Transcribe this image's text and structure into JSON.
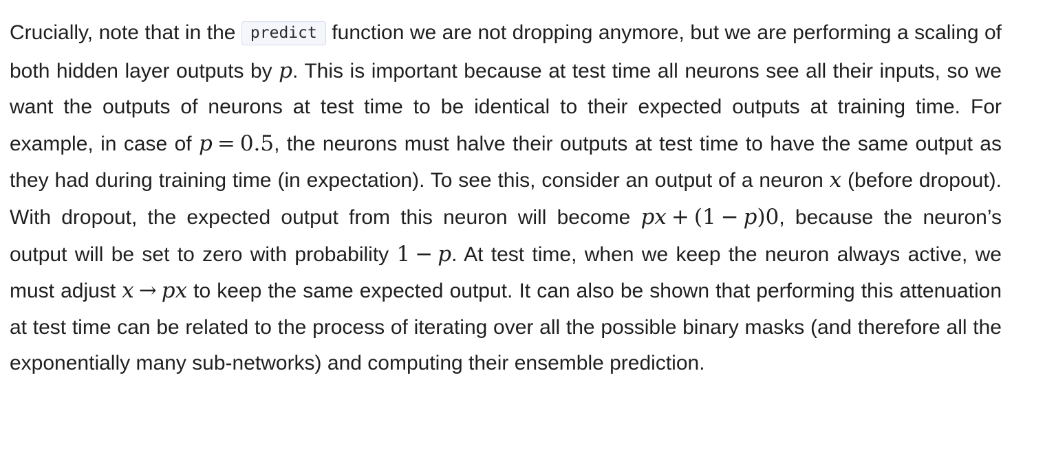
{
  "paragraph": {
    "t01": "Crucially, note that in the ",
    "code_predict": "predict",
    "t02": " function we are not dropping anymore, but we are performing a scaling of both hidden layer outputs by ",
    "m_p1": "p",
    "t03": ". This is important because at test time all neurons see all their inputs, so we want the outputs of neurons at test time to be identical to their expected outputs at training time. For example, in case of ",
    "m_p2": "p",
    "m_eq": "=",
    "m_half": "0.5",
    "t04": ", the neurons must halve their outputs at test time to have the same output as they had during training time (in expectation). To see this, consider an output of a neuron ",
    "m_x1": "x",
    "t05": " (before dropout). With dropout, the expected output from this neuron will become ",
    "m_px1": "px",
    "m_plus": "+",
    "m_lp": "(1",
    "m_minus1": "−",
    "m_p3": "p",
    "m_rp0": ")0",
    "t06": ", because the neuron’s output will be set to zero with probability ",
    "m_one": "1",
    "m_minus2": "−",
    "m_p4": "p",
    "t07": ". At test time, when we keep the neuron always active, we must adjust ",
    "m_x2": "x",
    "m_arrow": "→",
    "m_px2": "px",
    "t08": " to keep the same expected output. It can also be shown that performing this attenuation at test time can be related to the process of iterating over all the possible binary masks (and therefore all the exponentially many sub-networks) and computing their ensemble prediction."
  }
}
